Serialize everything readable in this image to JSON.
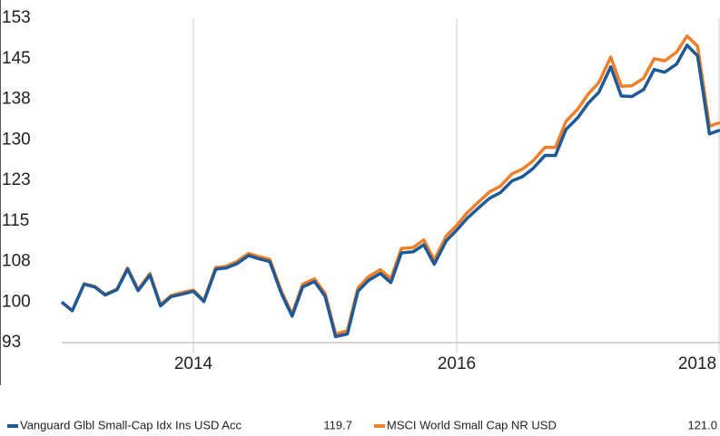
{
  "chart_data": {
    "type": "line",
    "x": [
      2013.0,
      2013.08,
      2013.17,
      2013.25,
      2013.33,
      2013.42,
      2013.5,
      2013.58,
      2013.67,
      2013.75,
      2013.83,
      2013.92,
      2014.0,
      2014.08,
      2014.17,
      2014.25,
      2014.33,
      2014.42,
      2014.5,
      2014.58,
      2014.67,
      2014.75,
      2014.83,
      2014.92,
      2015.0,
      2015.08,
      2015.17,
      2015.25,
      2015.33,
      2015.42,
      2015.5,
      2015.58,
      2015.67,
      2015.75,
      2015.83,
      2015.92,
      2016.0,
      2016.08,
      2016.17,
      2016.25,
      2016.33,
      2016.42,
      2016.5,
      2016.58,
      2016.67,
      2016.75,
      2016.83,
      2016.92,
      2017.0,
      2017.08,
      2017.17,
      2017.25,
      2017.33,
      2017.42,
      2017.5,
      2017.58,
      2017.67,
      2017.75,
      2017.83,
      2017.92,
      2018.0
    ],
    "series": [
      {
        "name": "Vanguard Glbl Small-Cap Idx Ins USD Acc",
        "legend_value": "119.7",
        "color": "#1f5a96",
        "values": [
          100,
          98.4,
          103.3,
          102.8,
          101.3,
          102.3,
          106.1,
          102.1,
          105,
          99.3,
          101,
          101.5,
          102,
          100.1,
          106.1,
          106.3,
          107.1,
          108.6,
          108,
          107.5,
          101.5,
          97.4,
          102.8,
          103.8,
          101.1,
          93.6,
          94.1,
          102,
          104,
          105.3,
          103.6,
          109.1,
          109.3,
          110.6,
          107,
          111.3,
          113.3,
          115.5,
          117.5,
          119.2,
          120.2,
          122.4,
          123.2,
          124.7,
          127.1,
          127.1,
          131.9,
          134.1,
          136.8,
          138.8,
          143.5,
          138.1,
          138,
          139.3,
          143,
          142.5,
          144,
          147.5,
          145.5,
          131.1,
          131.8
        ]
      },
      {
        "name": "MSCI World Small Cap NR USD",
        "legend_value": "121.0",
        "color": "#f07f2a",
        "values": [
          100,
          98.4,
          103.4,
          102.9,
          101.4,
          102.4,
          106.3,
          102.3,
          105.3,
          99.5,
          101.2,
          101.8,
          102.2,
          100.3,
          106.4,
          106.6,
          107.5,
          109,
          108.4,
          107.9,
          101.9,
          97.8,
          103.3,
          104.3,
          101.6,
          94.1,
          94.7,
          102.6,
          104.7,
          106,
          104.3,
          109.9,
          110.1,
          111.5,
          107.8,
          112.2,
          114.2,
          116.5,
          118.6,
          120.4,
          121.4,
          123.7,
          124.6,
          126.1,
          128.6,
          128.6,
          133.4,
          135.7,
          138.5,
          140.6,
          145.3,
          139.9,
          140,
          141.4,
          145,
          144.6,
          146.2,
          149.2,
          147.3,
          132.5,
          133.2
        ]
      }
    ],
    "xlim": [
      2013.0,
      2018.0
    ],
    "xticks": [
      2014,
      2016,
      2018
    ],
    "ylim": [
      92.5,
      152.5
    ],
    "yticks": [
      {
        "value": 92.5,
        "label": "93"
      },
      100,
      {
        "value": 107.5,
        "label": "108"
      },
      115,
      {
        "value": 122.5,
        "label": "123"
      },
      130,
      {
        "value": 137.5,
        "label": "138"
      },
      145,
      {
        "value": 152.5,
        "label": "153"
      }
    ]
  }
}
